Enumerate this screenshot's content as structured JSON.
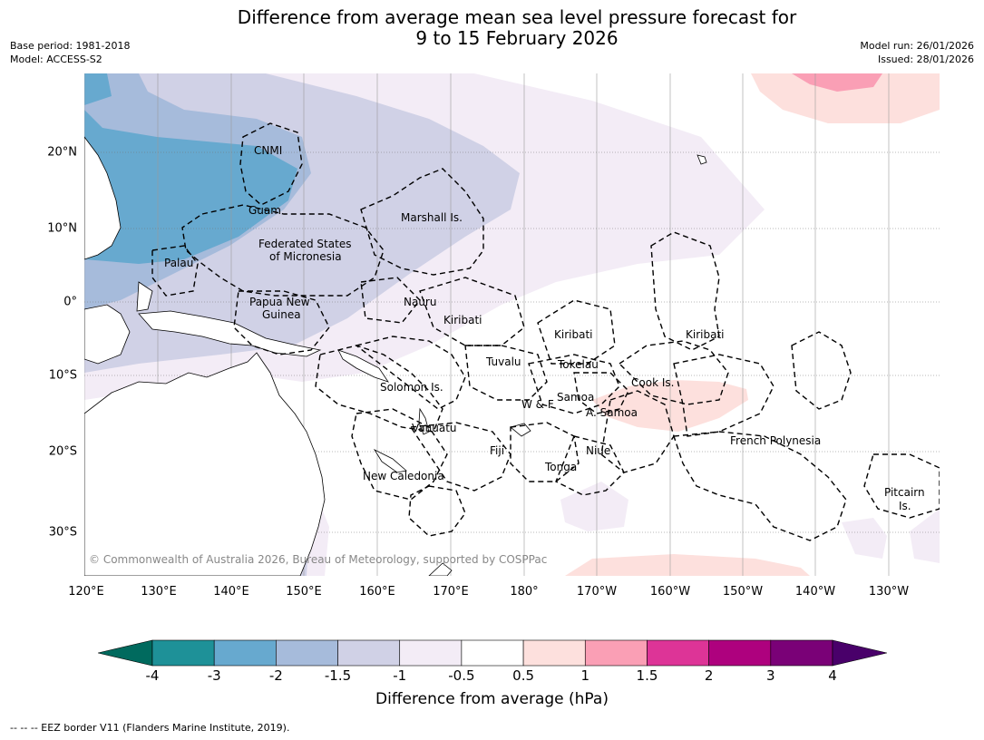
{
  "header": {
    "title_line1": "Difference from average mean sea level pressure forecast for",
    "title_line2": "9 to 15 February 2026",
    "base_period": "Base period: 1981-2018",
    "model": "Model: ACCESS-S2",
    "model_run": "Model run: 26/01/2026",
    "issued": "Issued: 28/01/2026"
  },
  "map": {
    "lon_labels": [
      "120°E",
      "130°E",
      "140°E",
      "150°E",
      "160°E",
      "170°E",
      "180°",
      "170°W",
      "160°W",
      "150°W",
      "140°W",
      "130°W"
    ],
    "lat_labels": [
      "20°N",
      "10°N",
      "0°",
      "10°S",
      "20°S",
      "30°S"
    ],
    "copyright": "© Commonwealth of Australia 2026, Bureau of Meteorology, supported by COSPPac",
    "places": {
      "cnmi": "CNMI",
      "guam": "Guam",
      "marshall": "Marshall Is.",
      "fsm1": "Federated States",
      "fsm2": "of Micronesia",
      "palau": "Palau",
      "png1": "Papua New",
      "png2": "Guinea",
      "nauru": "Nauru",
      "kiribati_w": "Kiribati",
      "kiribati_c": "Kiribati",
      "kiribati_e": "Kiribati",
      "tuvalu": "Tuvalu",
      "tokelau": "Tokelau",
      "solomon": "Solomon Is.",
      "cook": "Cook Is.",
      "wf": "W & F",
      "samoa": "Samoa",
      "asamoa": "A. Samoa",
      "vanuatu": "Vanuatu",
      "fiji": "Fiji",
      "niue": "Niue",
      "tonga": "Tonga",
      "french_polynesia": "French Polynesia",
      "new_caledonia": "New Caledonia",
      "pitcairn1": "Pitcairn",
      "pitcairn2": "Is."
    }
  },
  "colorbar": {
    "ticks": [
      "-4",
      "-3",
      "-2",
      "-1.5",
      "-1",
      "-0.5",
      "0.5",
      "1",
      "1.5",
      "2",
      "3",
      "4"
    ],
    "colors": {
      "below_min": "#006a5e",
      "bins": [
        "#1e9198",
        "#67a9cf",
        "#a6bbdb",
        "#d0d1e6",
        "#f3ecf6",
        "#ffffff",
        "#fde0dd",
        "#fa9fb5",
        "#dd3497",
        "#ae017e",
        "#7a0177"
      ],
      "above_max": "#49006a"
    },
    "label": "Difference from average (hPa)"
  },
  "footnote": "--  --  -- EEZ border V11 (Flanders Marine Institute, 2019)."
}
